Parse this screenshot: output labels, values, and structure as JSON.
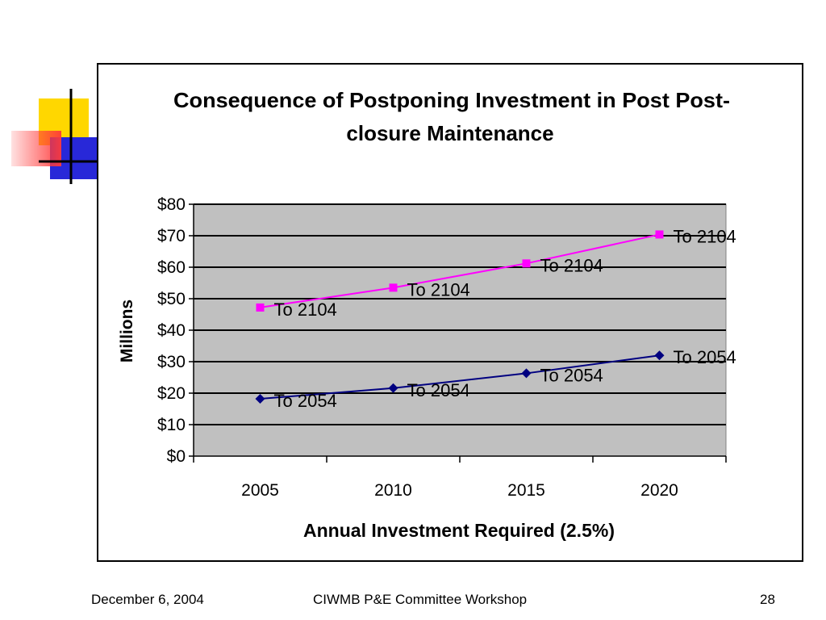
{
  "footer": {
    "date": "December 6, 2004",
    "event": "CIWMB P&E Committee Workshop",
    "page_number": "28"
  },
  "colors": {
    "logo_yellow": "#FFD700",
    "logo_blue": "#2828D8",
    "logo_red": "#FF3A3A",
    "plot_background": "#C0C0C0",
    "series_2104": "#FF00FF",
    "series_2054": "#000080"
  },
  "chart_data": {
    "type": "line",
    "title_lines": [
      "Consequence of Postponing  Investment in Post Post-",
      "closure Maintenance"
    ],
    "xlabel": "Annual Investment Required (2.5%)",
    "ylabel": "Millions",
    "categories": [
      "2005",
      "2010",
      "2015",
      "2020"
    ],
    "y_ticks": [
      "$0",
      "$10",
      "$20",
      "$30",
      "$40",
      "$50",
      "$60",
      "$70",
      "$80"
    ],
    "ylim": [
      0,
      80
    ],
    "grid": true,
    "legend": "none",
    "series": [
      {
        "values": [
          47.2,
          53.5,
          61.2,
          70.4
        ],
        "labels": [
          "To 2104",
          "To 2104",
          "To 2104",
          "To 2104"
        ],
        "color": "#FF00FF",
        "marker": "square"
      },
      {
        "values": [
          18.2,
          21.6,
          26.3,
          32.0
        ],
        "labels": [
          "To 2054",
          "To 2054",
          "To 2054",
          "To 2054"
        ],
        "color": "#000080",
        "marker": "diamond"
      }
    ]
  }
}
